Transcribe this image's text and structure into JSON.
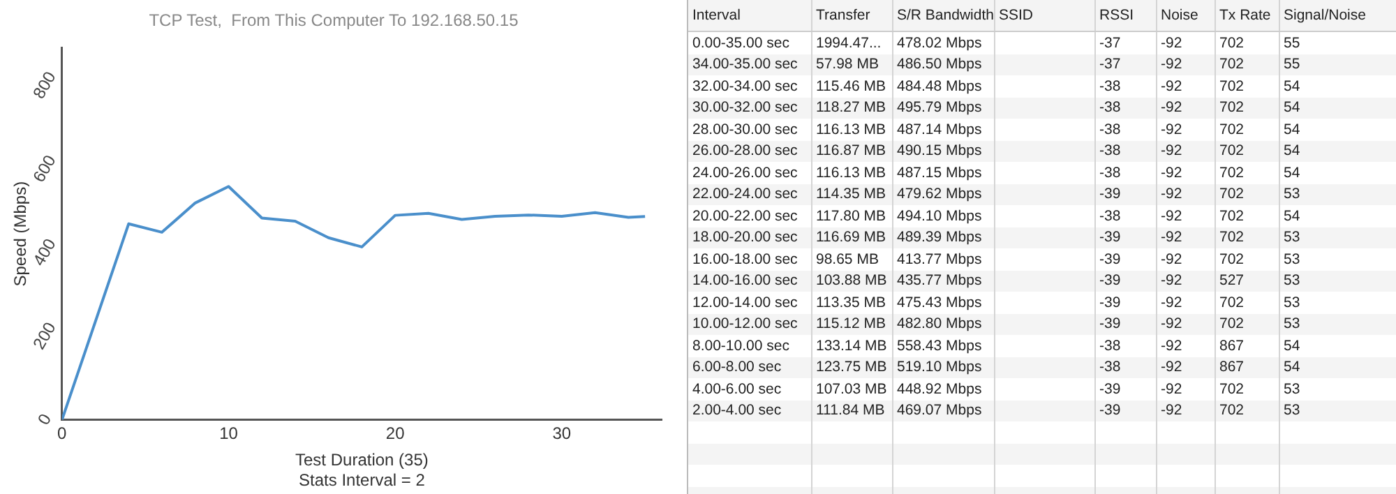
{
  "chart_data": [
    {
      "type": "line",
      "title": "TCP Test,  From This Computer To 192.168.50.15",
      "xlabel": "Test Duration (35)",
      "ylabel": "Speed (Mbps)",
      "annotations": [
        "Stats Interval = 2"
      ],
      "x": [
        0,
        4,
        6,
        8,
        10,
        12,
        14,
        16,
        18,
        20,
        22,
        24,
        26,
        28,
        30,
        32,
        34,
        35
      ],
      "series": [
        {
          "color": "#4a8fcb",
          "values": [
            0,
            469.07,
            448.92,
            519.1,
            558.43,
            482.8,
            475.43,
            435.77,
            413.77,
            489.39,
            494.1,
            479.62,
            487.15,
            490.15,
            487.14,
            495.79,
            484.48,
            486.5
          ]
        }
      ],
      "xlim": [
        0,
        36
      ],
      "xticks": [
        0,
        10,
        20,
        30
      ],
      "ylim": [
        0,
        890
      ],
      "yticks": [
        0,
        200,
        400,
        600,
        800
      ],
      "grid": false,
      "legend": false,
      "marker": "none",
      "line_style": "solid"
    },
    {
      "type": "other",
      "categories": [
        "Interval",
        "Transfer",
        "S/R Bandwidth",
        "SSID",
        "RSSI",
        "Noise",
        "Tx Rate",
        "Signal/Noise"
      ],
      "cell_labels": [
        [
          "0.00-35.00 sec",
          "1994.47...",
          "478.02 Mbps",
          null,
          "-37",
          "-92",
          "702",
          "55"
        ],
        [
          "34.00-35.00 sec",
          "57.98 MB",
          "486.50 Mbps",
          null,
          "-37",
          "-92",
          "702",
          "55"
        ],
        [
          "32.00-34.00 sec",
          "115.46 MB",
          "484.48 Mbps",
          null,
          "-38",
          "-92",
          "702",
          "54"
        ],
        [
          "30.00-32.00 sec",
          "118.27 MB",
          "495.79 Mbps",
          null,
          "-38",
          "-92",
          "702",
          "54"
        ],
        [
          "28.00-30.00 sec",
          "116.13 MB",
          "487.14 Mbps",
          null,
          "-38",
          "-92",
          "702",
          "54"
        ],
        [
          "26.00-28.00 sec",
          "116.87 MB",
          "490.15 Mbps",
          null,
          "-38",
          "-92",
          "702",
          "54"
        ],
        [
          "24.00-26.00 sec",
          "116.13 MB",
          "487.15 Mbps",
          null,
          "-38",
          "-92",
          "702",
          "54"
        ],
        [
          "22.00-24.00 sec",
          "114.35 MB",
          "479.62 Mbps",
          null,
          "-39",
          "-92",
          "702",
          "53"
        ],
        [
          "20.00-22.00 sec",
          "117.80 MB",
          "494.10 Mbps",
          null,
          "-38",
          "-92",
          "702",
          "54"
        ],
        [
          "18.00-20.00 sec",
          "116.69 MB",
          "489.39 Mbps",
          null,
          "-39",
          "-92",
          "702",
          "53"
        ],
        [
          "16.00-18.00 sec",
          "98.65 MB",
          "413.77 Mbps",
          null,
          "-39",
          "-92",
          "702",
          "53"
        ],
        [
          "14.00-16.00 sec",
          "103.88 MB",
          "435.77 Mbps",
          null,
          "-39",
          "-92",
          "527",
          "53"
        ],
        [
          "12.00-14.00 sec",
          "113.35 MB",
          "475.43 Mbps",
          null,
          "-39",
          "-92",
          "702",
          "53"
        ],
        [
          "10.00-12.00 sec",
          "115.12 MB",
          "482.80 Mbps",
          null,
          "-39",
          "-92",
          "702",
          "53"
        ],
        [
          "8.00-10.00 sec",
          "133.14 MB",
          "558.43 Mbps",
          null,
          "-38",
          "-92",
          "867",
          "54"
        ],
        [
          "6.00-8.00 sec",
          "123.75 MB",
          "519.10 Mbps",
          null,
          "-38",
          "-92",
          "867",
          "54"
        ],
        [
          "4.00-6.00 sec",
          "107.03 MB",
          "448.92 Mbps",
          null,
          "-39",
          "-92",
          "702",
          "53"
        ],
        [
          "2.00-4.00 sec",
          "111.84 MB",
          "469.07 Mbps",
          null,
          "-39",
          "-92",
          "702",
          "53"
        ]
      ]
    }
  ]
}
